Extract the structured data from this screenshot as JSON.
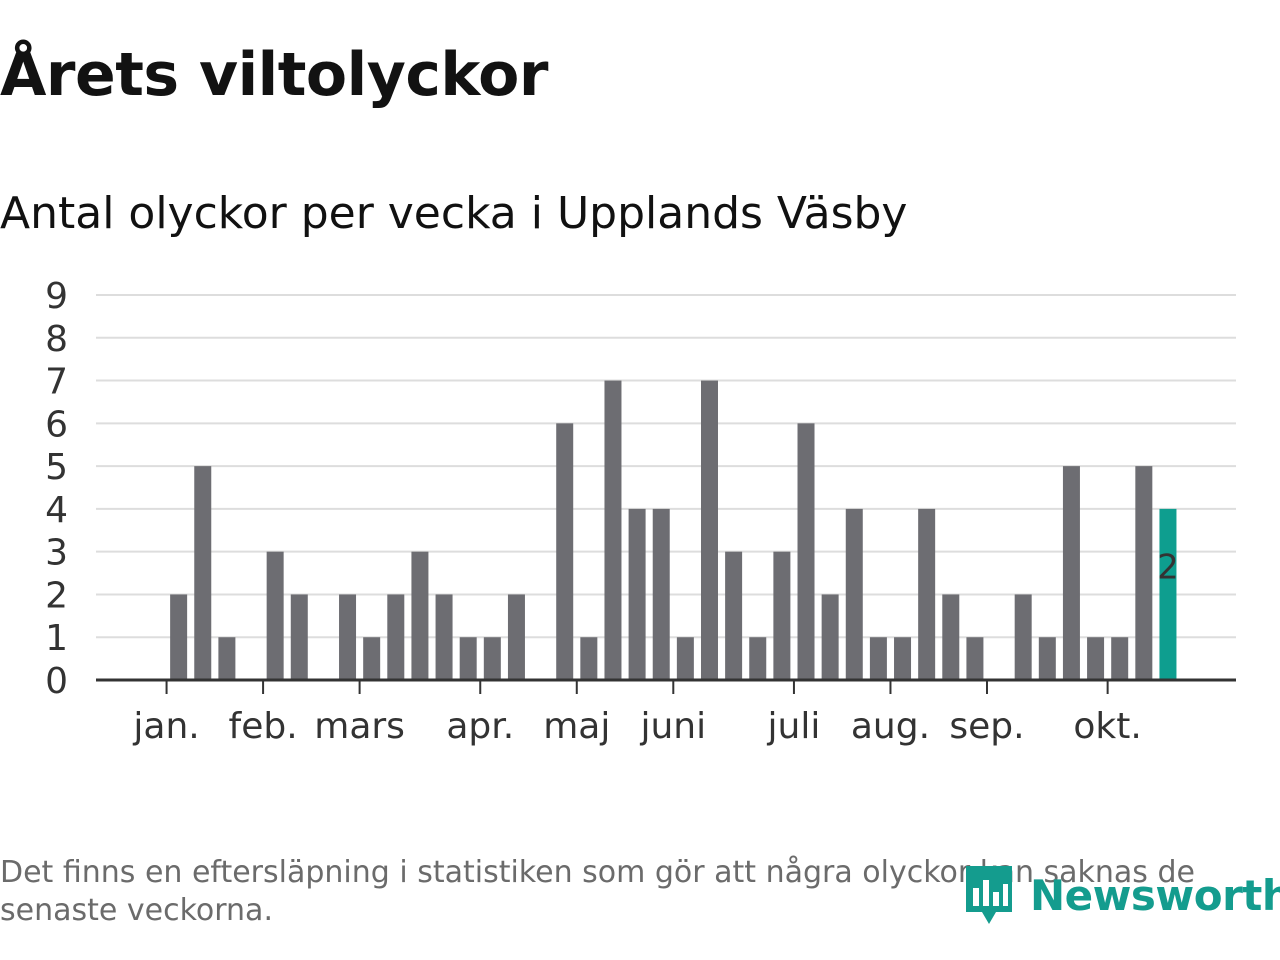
{
  "header": {
    "title": "Årets viltolyckor",
    "subtitle": "Antal olyckor per vecka i Upplands Väsby"
  },
  "chart_data": {
    "type": "bar",
    "title": "Årets viltolyckor",
    "subtitle": "Antal olyckor per vecka i Upplands Väsby",
    "xlabel": "",
    "ylabel": "",
    "ylim": [
      0,
      9
    ],
    "y_ticks": [
      0,
      1,
      2,
      3,
      4,
      5,
      6,
      7,
      8,
      9
    ],
    "grid": true,
    "weeks": [
      1,
      2,
      3,
      4,
      5,
      6,
      7,
      8,
      9,
      10,
      11,
      12,
      13,
      14,
      15,
      16,
      17,
      18,
      19,
      20,
      21,
      22,
      23,
      24,
      25,
      26,
      27,
      28,
      29,
      30,
      31,
      32,
      33,
      34,
      35,
      36,
      37,
      38,
      39,
      40,
      41,
      42,
      43
    ],
    "values": [
      0,
      2,
      5,
      1,
      0,
      3,
      2,
      0,
      2,
      1,
      2,
      3,
      2,
      1,
      1,
      2,
      0,
      6,
      1,
      7,
      4,
      4,
      1,
      7,
      3,
      1,
      3,
      6,
      2,
      4,
      1,
      1,
      4,
      2,
      1,
      0,
      2,
      1,
      5,
      1,
      1,
      5,
      4
    ],
    "highlight_value": 2,
    "highlight_label": "2",
    "month_labels": [
      {
        "label": "jan.",
        "week": 1.5
      },
      {
        "label": "feb.",
        "week": 5.5
      },
      {
        "label": "mars",
        "week": 9.5
      },
      {
        "label": "apr.",
        "week": 14.5
      },
      {
        "label": "maj",
        "week": 18.5
      },
      {
        "label": "juni",
        "week": 22.5
      },
      {
        "label": "juli",
        "week": 27.5
      },
      {
        "label": "aug.",
        "week": 31.5
      },
      {
        "label": "sep.",
        "week": 35.5
      },
      {
        "label": "okt.",
        "week": 40.5
      }
    ],
    "colors": {
      "bar": "#6d6d72",
      "highlight": "#0e9e8f",
      "grid": "#dddddd",
      "axis": "#333333"
    }
  },
  "footer": {
    "note": "Det finns en eftersläpning i statistiken som gör att några olyckor kan saknas de senaste veckorna.",
    "brand": "Newsworthy",
    "brand_color": "#149c8e"
  }
}
